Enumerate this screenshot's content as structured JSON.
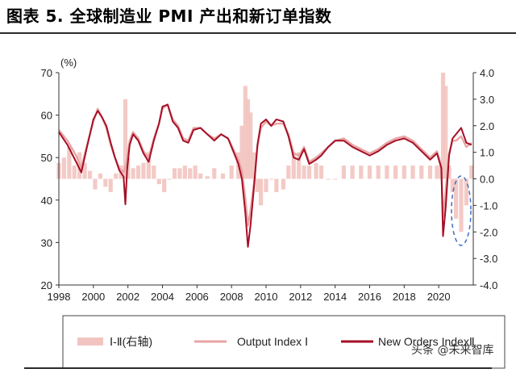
{
  "title": "图表 5. 全球制造业 PMI 产出和新订单指数",
  "watermark": "头条 @未来智库",
  "chart_data": {
    "type": "line",
    "x_ticks": [
      "1998",
      "2000",
      "2002",
      "2004",
      "2006",
      "2008",
      "2010",
      "2012",
      "2014",
      "2016",
      "2018",
      "2020"
    ],
    "left_axis": {
      "unit": "(%)",
      "ylim": [
        20,
        70
      ],
      "ticks": [
        "20",
        "30",
        "40",
        "50",
        "60",
        "70"
      ]
    },
    "right_axis": {
      "ylim": [
        -4.0,
        4.0
      ],
      "ticks": [
        "-4.0",
        "-3.0",
        "-2.0",
        "-1.0",
        "0.0",
        "1.0",
        "2.0",
        "3.0",
        "4.0"
      ]
    },
    "xlim": [
      1998.0,
      2022.0
    ],
    "legend": [
      "Ⅰ-Ⅱ(右轴)",
      "Output Index Ⅰ",
      "New Orders IndexⅡ"
    ],
    "colors": {
      "diff": "#f2c4c0",
      "output": "#e8a5a5",
      "new_orders": "#a50f26",
      "highlight": "#3d6fc4"
    },
    "series": [
      {
        "name": "Output Index Ⅰ",
        "axis": "left",
        "points": [
          [
            1998.0,
            56.5
          ],
          [
            1998.5,
            54.0
          ],
          [
            1999.0,
            50.5
          ],
          [
            1999.3,
            47.5
          ],
          [
            1999.6,
            52.5
          ],
          [
            2000.0,
            58.5
          ],
          [
            2000.25,
            61.5
          ],
          [
            2000.5,
            59.5
          ],
          [
            2000.75,
            57.0
          ],
          [
            2001.0,
            53.0
          ],
          [
            2001.25,
            50.0
          ],
          [
            2001.5,
            47.5
          ],
          [
            2001.75,
            46.5
          ],
          [
            2001.9,
            48.5
          ],
          [
            2002.1,
            54.0
          ],
          [
            2002.3,
            56.0
          ],
          [
            2002.6,
            54.5
          ],
          [
            2002.9,
            51.5
          ],
          [
            2003.2,
            50.0
          ],
          [
            2003.5,
            54.5
          ],
          [
            2003.8,
            58.0
          ],
          [
            2004.0,
            61.5
          ],
          [
            2004.3,
            62.5
          ],
          [
            2004.6,
            59.0
          ],
          [
            2004.9,
            57.5
          ],
          [
            2005.2,
            54.5
          ],
          [
            2005.5,
            54.0
          ],
          [
            2005.8,
            57.0
          ],
          [
            2006.2,
            57.0
          ],
          [
            2006.6,
            55.5
          ],
          [
            2007.0,
            54.5
          ],
          [
            2007.4,
            55.5
          ],
          [
            2007.8,
            54.5
          ],
          [
            2008.1,
            52.0
          ],
          [
            2008.4,
            49.5
          ],
          [
            2008.6,
            47.0
          ],
          [
            2008.8,
            40.5
          ],
          [
            2008.95,
            34.0
          ],
          [
            2009.1,
            37.5
          ],
          [
            2009.3,
            44.0
          ],
          [
            2009.5,
            52.5
          ],
          [
            2009.7,
            57.0
          ],
          [
            2010.0,
            58.5
          ],
          [
            2010.3,
            57.5
          ],
          [
            2010.6,
            58.0
          ],
          [
            2011.0,
            58.0
          ],
          [
            2011.3,
            55.5
          ],
          [
            2011.6,
            51.0
          ],
          [
            2011.9,
            50.5
          ],
          [
            2012.2,
            52.5
          ],
          [
            2012.5,
            49.0
          ],
          [
            2012.9,
            50.0
          ],
          [
            2013.2,
            51.0
          ],
          [
            2013.6,
            52.5
          ],
          [
            2014.0,
            54.0
          ],
          [
            2014.5,
            54.5
          ],
          [
            2015.0,
            53.0
          ],
          [
            2015.5,
            52.0
          ],
          [
            2016.0,
            51.0
          ],
          [
            2016.5,
            52.0
          ],
          [
            2017.0,
            53.5
          ],
          [
            2017.5,
            54.5
          ],
          [
            2018.0,
            55.0
          ],
          [
            2018.5,
            54.0
          ],
          [
            2019.0,
            52.0
          ],
          [
            2019.5,
            50.0
          ],
          [
            2019.9,
            51.5
          ],
          [
            2020.15,
            48.0
          ],
          [
            2020.25,
            36.0
          ],
          [
            2020.4,
            42.0
          ],
          [
            2020.6,
            51.0
          ],
          [
            2020.8,
            54.0
          ],
          [
            2021.0,
            54.0
          ],
          [
            2021.3,
            55.0
          ],
          [
            2021.6,
            52.5
          ],
          [
            2021.9,
            53.5
          ]
        ]
      },
      {
        "name": "New Orders IndexⅡ",
        "axis": "left",
        "points": [
          [
            1998.0,
            56.0
          ],
          [
            1998.5,
            53.0
          ],
          [
            1999.0,
            49.0
          ],
          [
            1999.3,
            46.5
          ],
          [
            1999.6,
            52.0
          ],
          [
            2000.0,
            59.0
          ],
          [
            2000.25,
            61.0
          ],
          [
            2000.5,
            59.5
          ],
          [
            2000.75,
            57.5
          ],
          [
            2001.0,
            53.5
          ],
          [
            2001.25,
            50.0
          ],
          [
            2001.5,
            47.0
          ],
          [
            2001.75,
            45.5
          ],
          [
            2001.85,
            39.0
          ],
          [
            2001.95,
            47.0
          ],
          [
            2002.1,
            53.0
          ],
          [
            2002.3,
            55.5
          ],
          [
            2002.6,
            54.0
          ],
          [
            2002.9,
            51.0
          ],
          [
            2003.2,
            49.0
          ],
          [
            2003.5,
            54.0
          ],
          [
            2003.8,
            58.0
          ],
          [
            2004.0,
            62.0
          ],
          [
            2004.3,
            62.5
          ],
          [
            2004.6,
            58.5
          ],
          [
            2004.9,
            57.0
          ],
          [
            2005.2,
            54.0
          ],
          [
            2005.5,
            53.5
          ],
          [
            2005.8,
            56.5
          ],
          [
            2006.2,
            57.0
          ],
          [
            2006.6,
            55.5
          ],
          [
            2007.0,
            54.0
          ],
          [
            2007.4,
            55.5
          ],
          [
            2007.8,
            54.5
          ],
          [
            2008.1,
            51.5
          ],
          [
            2008.4,
            48.5
          ],
          [
            2008.6,
            45.0
          ],
          [
            2008.8,
            37.0
          ],
          [
            2008.95,
            29.0
          ],
          [
            2009.1,
            34.0
          ],
          [
            2009.3,
            43.0
          ],
          [
            2009.5,
            53.0
          ],
          [
            2009.7,
            58.0
          ],
          [
            2010.0,
            59.0
          ],
          [
            2010.3,
            57.5
          ],
          [
            2010.6,
            59.0
          ],
          [
            2011.0,
            58.5
          ],
          [
            2011.3,
            55.0
          ],
          [
            2011.6,
            50.0
          ],
          [
            2011.9,
            49.5
          ],
          [
            2012.2,
            52.0
          ],
          [
            2012.5,
            48.5
          ],
          [
            2012.9,
            49.5
          ],
          [
            2013.2,
            50.5
          ],
          [
            2013.6,
            52.5
          ],
          [
            2014.0,
            54.0
          ],
          [
            2014.5,
            54.0
          ],
          [
            2015.0,
            52.5
          ],
          [
            2015.5,
            51.5
          ],
          [
            2016.0,
            50.5
          ],
          [
            2016.5,
            51.5
          ],
          [
            2017.0,
            53.0
          ],
          [
            2017.5,
            54.0
          ],
          [
            2018.0,
            54.5
          ],
          [
            2018.5,
            53.5
          ],
          [
            2019.0,
            51.5
          ],
          [
            2019.5,
            49.5
          ],
          [
            2019.9,
            51.0
          ],
          [
            2020.15,
            47.5
          ],
          [
            2020.25,
            31.5
          ],
          [
            2020.4,
            38.0
          ],
          [
            2020.6,
            50.5
          ],
          [
            2020.8,
            54.5
          ],
          [
            2021.0,
            55.5
          ],
          [
            2021.3,
            57.0
          ],
          [
            2021.6,
            53.5
          ],
          [
            2021.9,
            53.0
          ]
        ]
      },
      {
        "name": "Ⅰ-Ⅱ(右轴)",
        "axis": "right",
        "type": "bar",
        "points": [
          [
            1998.0,
            0.6
          ],
          [
            1998.3,
            0.8
          ],
          [
            1998.6,
            1.2
          ],
          [
            1998.9,
            0.5
          ],
          [
            1999.2,
            1.0
          ],
          [
            1999.5,
            0.6
          ],
          [
            1999.8,
            0.3
          ],
          [
            2000.1,
            -0.4
          ],
          [
            2000.4,
            0.2
          ],
          [
            2000.7,
            -0.3
          ],
          [
            2001.0,
            -0.5
          ],
          [
            2001.3,
            0.2
          ],
          [
            2001.6,
            0.5
          ],
          [
            2001.85,
            3.0
          ],
          [
            2002.0,
            0.8
          ],
          [
            2002.3,
            0.4
          ],
          [
            2002.6,
            0.5
          ],
          [
            2002.9,
            0.6
          ],
          [
            2003.2,
            1.0
          ],
          [
            2003.5,
            0.5
          ],
          [
            2003.8,
            -0.2
          ],
          [
            2004.1,
            -0.5
          ],
          [
            2004.4,
            0.0
          ],
          [
            2004.7,
            0.4
          ],
          [
            2005.0,
            0.4
          ],
          [
            2005.3,
            0.5
          ],
          [
            2005.6,
            0.4
          ],
          [
            2005.9,
            0.5
          ],
          [
            2006.2,
            0.2
          ],
          [
            2006.6,
            0.1
          ],
          [
            2007.0,
            0.4
          ],
          [
            2007.5,
            0.2
          ],
          [
            2008.0,
            0.5
          ],
          [
            2008.4,
            1.0
          ],
          [
            2008.6,
            2.0
          ],
          [
            2008.8,
            3.5
          ],
          [
            2008.95,
            3.0
          ],
          [
            2009.1,
            2.5
          ],
          [
            2009.3,
            1.0
          ],
          [
            2009.5,
            -0.5
          ],
          [
            2009.7,
            -1.0
          ],
          [
            2010.0,
            -0.5
          ],
          [
            2010.3,
            0.0
          ],
          [
            2010.6,
            -0.5
          ],
          [
            2011.0,
            -0.4
          ],
          [
            2011.3,
            0.5
          ],
          [
            2011.6,
            1.0
          ],
          [
            2011.9,
            1.0
          ],
          [
            2012.2,
            0.5
          ],
          [
            2012.5,
            0.5
          ],
          [
            2012.9,
            0.6
          ],
          [
            2013.2,
            0.5
          ],
          [
            2013.6,
            0.0
          ],
          [
            2014.0,
            0.0
          ],
          [
            2014.5,
            0.5
          ],
          [
            2015.0,
            0.5
          ],
          [
            2015.5,
            0.5
          ],
          [
            2016.0,
            0.5
          ],
          [
            2016.5,
            0.5
          ],
          [
            2017.0,
            0.5
          ],
          [
            2017.5,
            0.5
          ],
          [
            2018.0,
            0.5
          ],
          [
            2018.5,
            0.5
          ],
          [
            2019.0,
            0.5
          ],
          [
            2019.5,
            0.5
          ],
          [
            2019.9,
            0.5
          ],
          [
            2020.15,
            0.5
          ],
          [
            2020.25,
            4.0
          ],
          [
            2020.4,
            3.5
          ],
          [
            2020.6,
            0.5
          ],
          [
            2020.8,
            -0.5
          ],
          [
            2021.0,
            -1.5
          ],
          [
            2021.3,
            -2.0
          ],
          [
            2021.6,
            -1.0
          ],
          [
            2021.9,
            0.5
          ]
        ]
      }
    ],
    "annotations": [
      {
        "type": "dashed-ellipse",
        "x": 2021.3,
        "y_center": -1.2,
        "note": ""
      }
    ]
  }
}
